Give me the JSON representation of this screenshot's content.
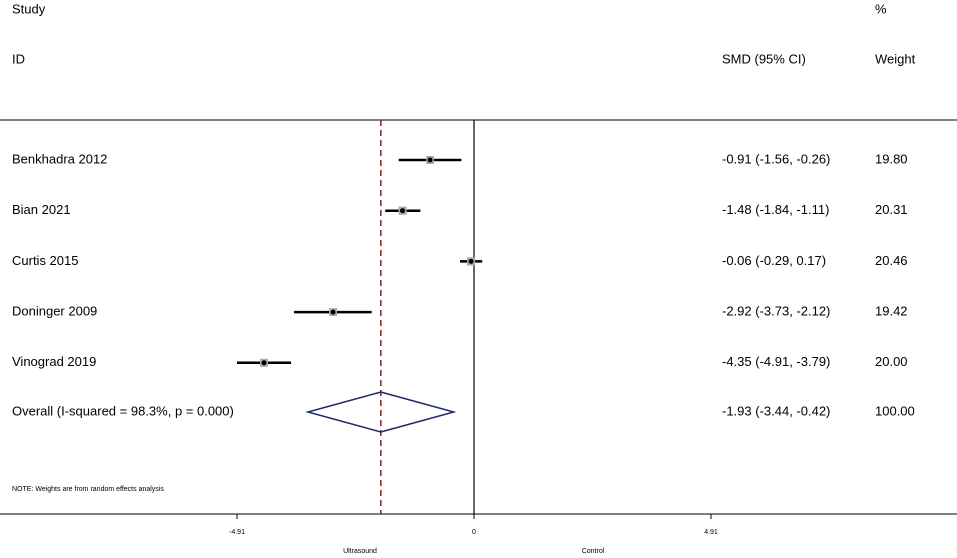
{
  "chart_data": {
    "type": "forest",
    "headers": {
      "study": "Study",
      "id": "ID",
      "effect": "SMD (95% CI)",
      "pct": "%",
      "weight": "Weight"
    },
    "studies": [
      {
        "name": "Benkhadra 2012",
        "smd": -0.91,
        "lower": -1.56,
        "upper": -0.26,
        "ci_label": "-0.91 (-1.56, -0.26)",
        "weight": 19.8,
        "weight_label": "19.80"
      },
      {
        "name": "Bian 2021",
        "smd": -1.48,
        "lower": -1.84,
        "upper": -1.11,
        "ci_label": "-1.48 (-1.84, -1.11)",
        "weight": 20.31,
        "weight_label": "20.31"
      },
      {
        "name": "Curtis 2015",
        "smd": -0.06,
        "lower": -0.29,
        "upper": 0.17,
        "ci_label": "-0.06 (-0.29, 0.17)",
        "weight": 20.46,
        "weight_label": "20.46"
      },
      {
        "name": "Doninger 2009",
        "smd": -2.92,
        "lower": -3.73,
        "upper": -2.12,
        "ci_label": "-2.92 (-3.73, -2.12)",
        "weight": 19.42,
        "weight_label": "19.42"
      },
      {
        "name": "Vinograd 2019",
        "smd": -4.35,
        "lower": -4.91,
        "upper": -3.79,
        "ci_label": "-4.35 (-4.91, -3.79)",
        "weight": 20.0,
        "weight_label": "20.00"
      }
    ],
    "overall": {
      "name": "Overall  (I-squared = 98.3%, p = 0.000)",
      "smd": -1.93,
      "lower": -3.44,
      "upper": -0.42,
      "ci_label": "-1.93 (-3.44, -0.42)",
      "weight": 100,
      "weight_label": "100.00"
    },
    "note": "NOTE: Weights are from random effects analysis",
    "xlim": [
      -4.91,
      4.91
    ],
    "xticks": [
      -4.91,
      0,
      4.91
    ],
    "x_label_left": "Ultrasound",
    "x_label_right": "Control",
    "ci_color": "#000000",
    "diamond_color": "#1f2a6e",
    "pooled_line_color": "#8b1a1a"
  }
}
